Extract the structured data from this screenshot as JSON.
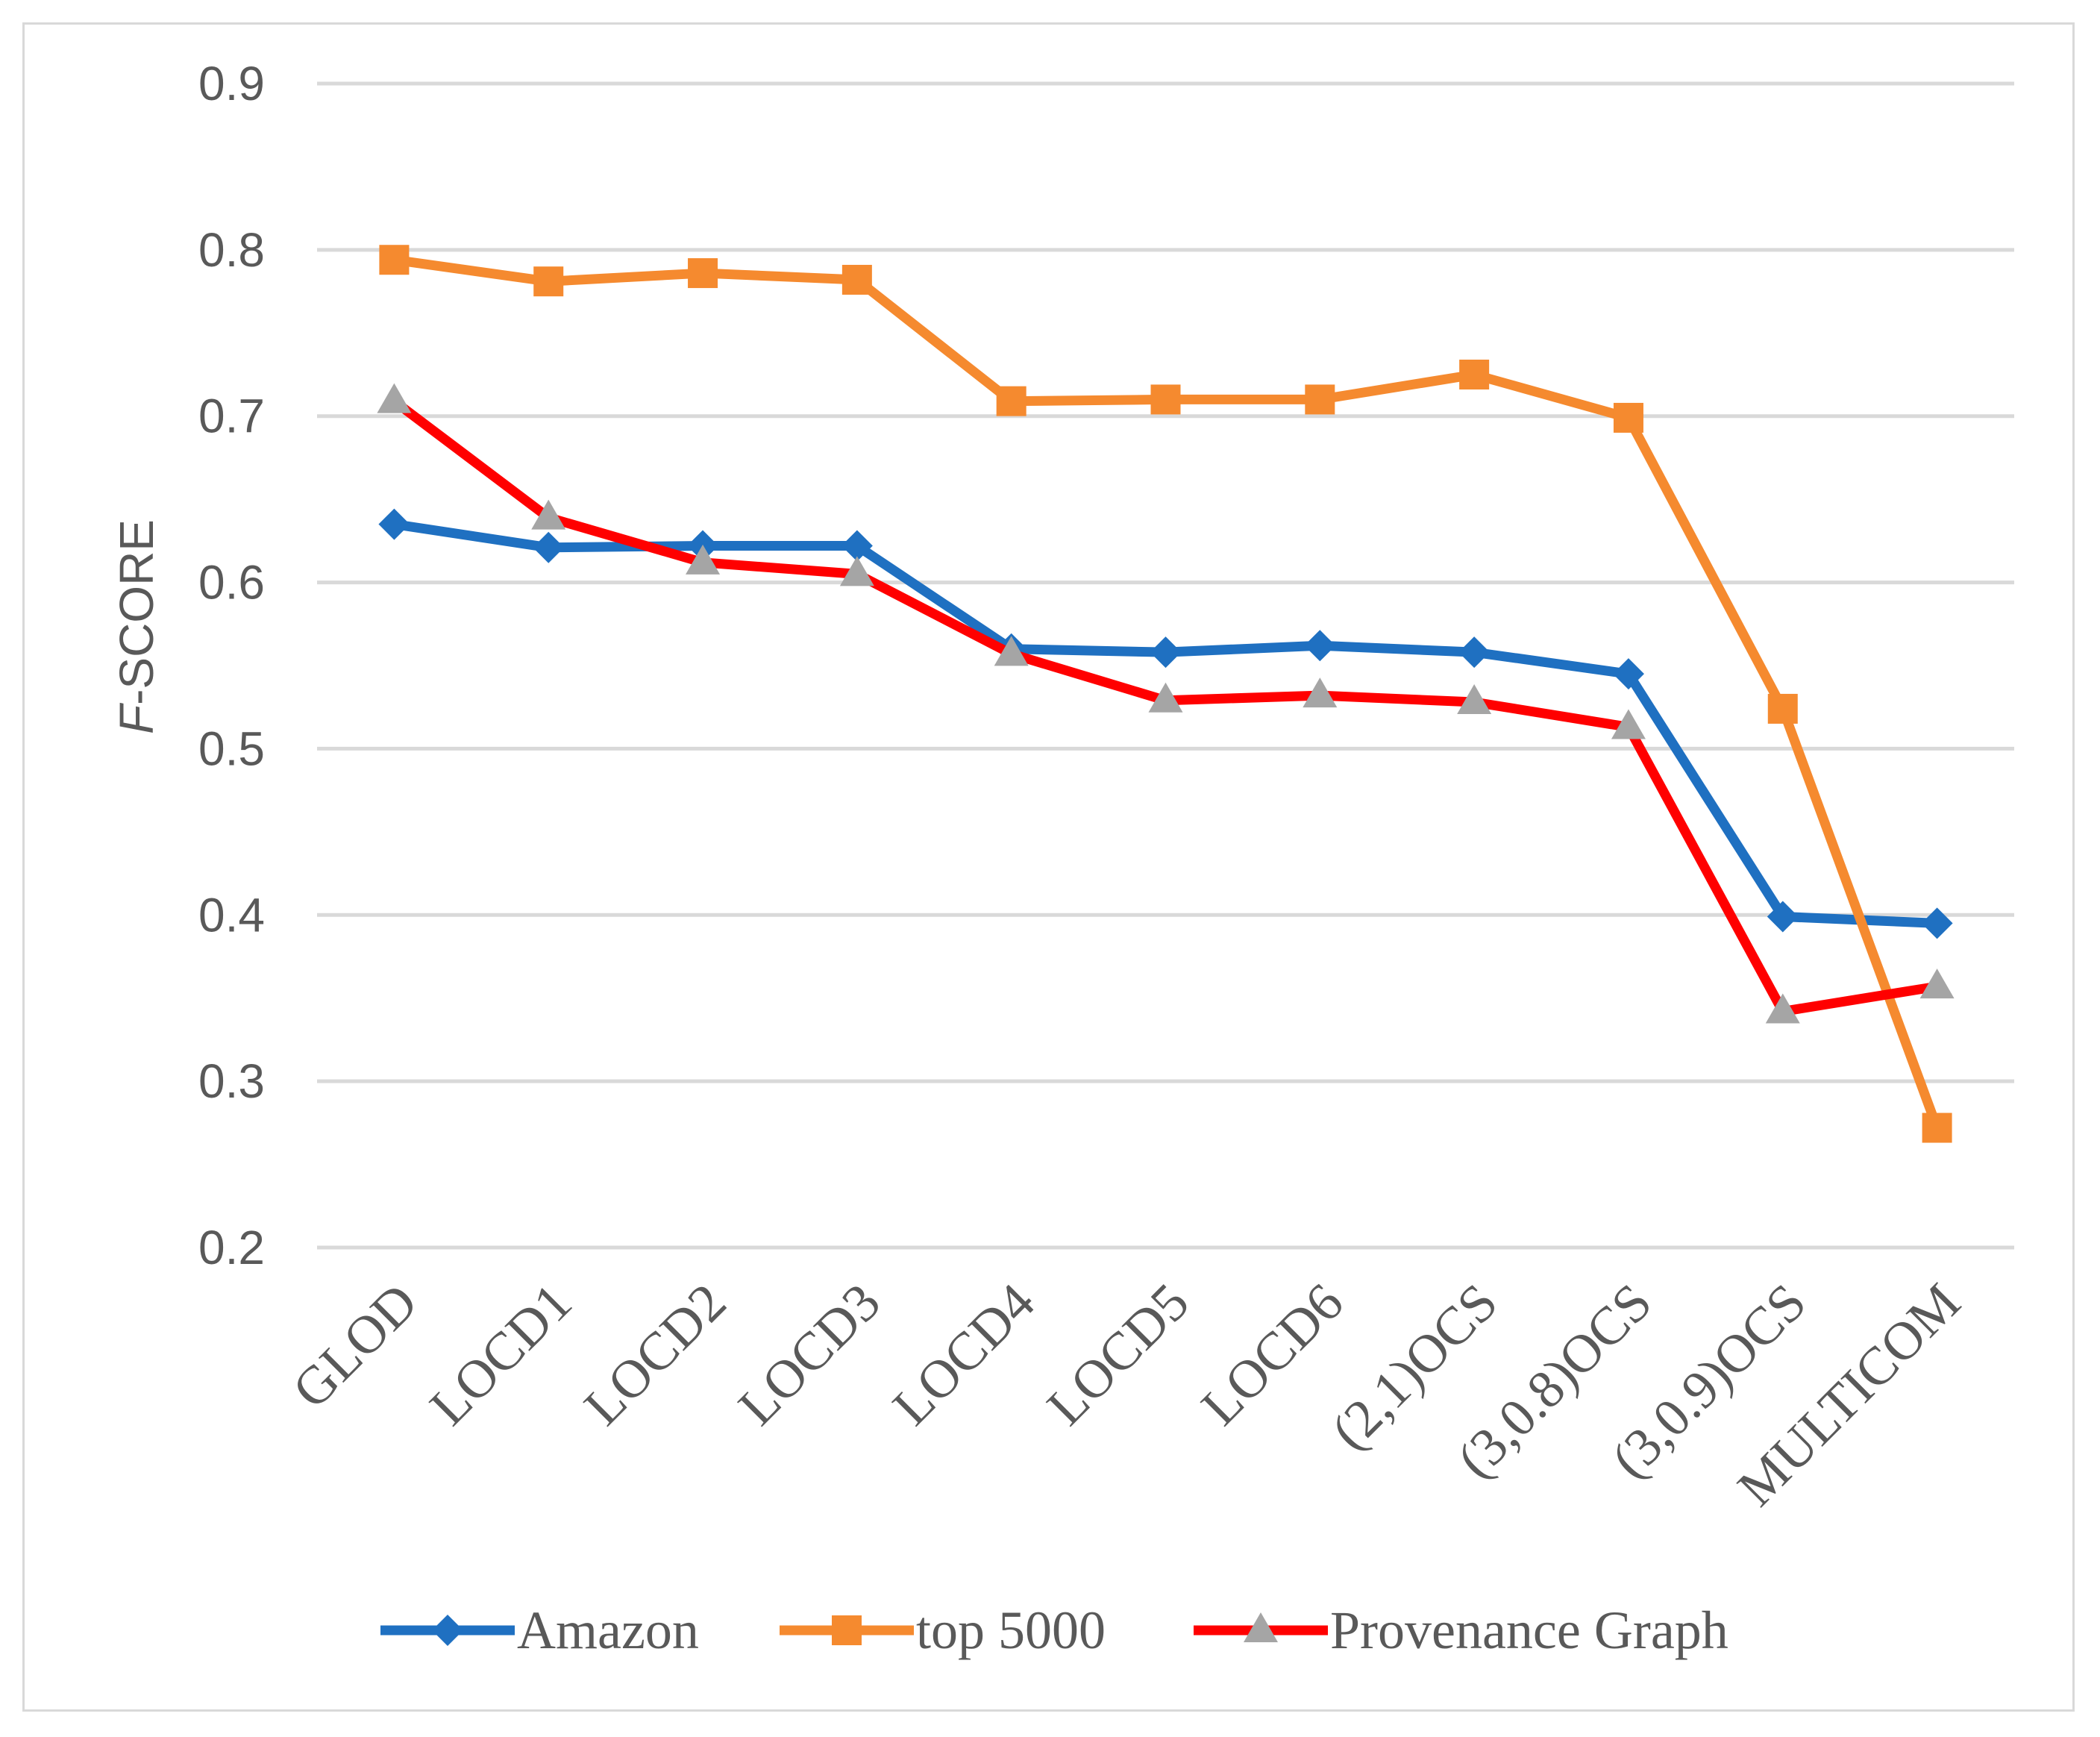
{
  "chart_data": {
    "type": "line",
    "title": "",
    "xlabel": "",
    "ylabel_italic": "F",
    "ylabel_rest": "-SCORE",
    "ylim": [
      0.2,
      0.9
    ],
    "yticks": [
      "0.2",
      "0.3",
      "0.4",
      "0.5",
      "0.6",
      "0.7",
      "0.8",
      "0.9"
    ],
    "grid": true,
    "legend_position": "bottom",
    "categories": [
      "GLOD",
      "LOCD1",
      "LOCD2",
      "LOCD3",
      "LOCD4",
      "LOCD5",
      "LOCD6",
      "(2,1)OCS",
      "(3,0.8)OCS",
      "(3,0.9)OCS",
      "MULTICOM"
    ],
    "series": [
      {
        "name": "Amazon",
        "color": "#1f70c1",
        "marker": "diamond",
        "values": [
          0.635,
          0.621,
          0.622,
          0.622,
          0.56,
          0.558,
          0.562,
          0.558,
          0.545,
          0.399,
          0.395
        ]
      },
      {
        "name": "top 5000",
        "color": "#f58a2f",
        "marker": "square",
        "values": [
          0.794,
          0.781,
          0.786,
          0.782,
          0.709,
          0.71,
          0.71,
          0.725,
          0.699,
          0.524,
          0.272
        ]
      },
      {
        "name": "Provenance Graph",
        "color": "#ff0000",
        "marker": "triangle",
        "marker_color": "#a5a5a5",
        "values": [
          0.709,
          0.639,
          0.612,
          0.605,
          0.557,
          0.529,
          0.532,
          0.528,
          0.513,
          0.342,
          0.357
        ]
      }
    ]
  }
}
